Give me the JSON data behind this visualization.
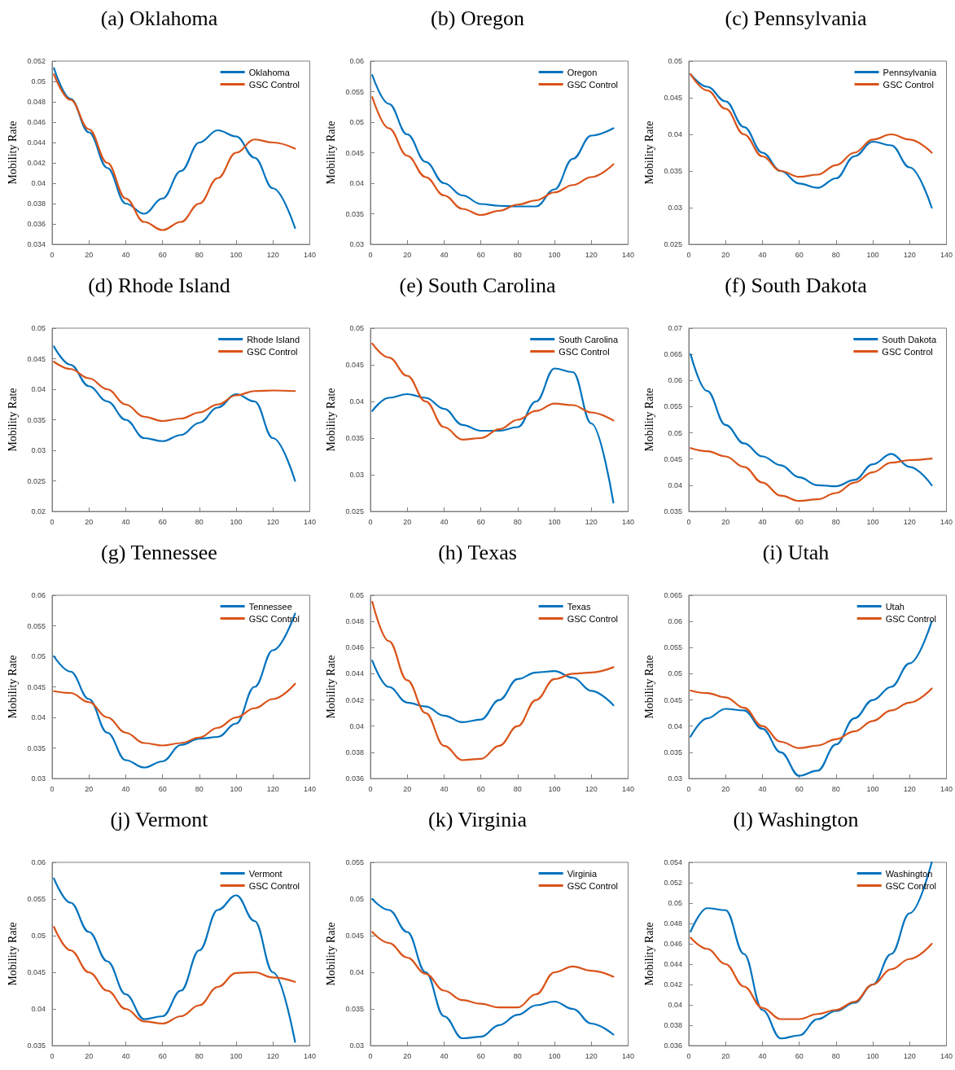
{
  "chart_data": [
    {
      "type": "line",
      "title": "(a) Oklahoma",
      "ylabel": "Mobility Rate",
      "x": [
        1,
        10,
        20,
        30,
        40,
        50,
        60,
        70,
        80,
        90,
        100,
        110,
        120,
        132
      ],
      "xlim": [
        0,
        140
      ],
      "xticks": [
        0,
        20,
        40,
        60,
        80,
        100,
        120,
        140
      ],
      "ylim": [
        0.034,
        0.052
      ],
      "yticks": [
        0.034,
        0.036,
        0.038,
        0.04,
        0.042,
        0.044,
        0.046,
        0.048,
        0.05,
        0.052
      ],
      "legend": "top right",
      "grid": false,
      "line_style": "solid",
      "series": [
        {
          "name": "Oklahoma",
          "color": "#0072bd",
          "values": [
            0.0513,
            0.0483,
            0.045,
            0.0415,
            0.038,
            0.037,
            0.0385,
            0.0412,
            0.044,
            0.0452,
            0.0446,
            0.0425,
            0.0395,
            0.0356
          ]
        },
        {
          "name": "GSC Control",
          "color": "#d95319",
          "values": [
            0.0507,
            0.0482,
            0.0453,
            0.042,
            0.0385,
            0.0362,
            0.0354,
            0.0362,
            0.038,
            0.0405,
            0.043,
            0.0443,
            0.044,
            0.0434
          ]
        }
      ]
    },
    {
      "type": "line",
      "title": "(b) Oregon",
      "ylabel": "Mobility Rate",
      "x": [
        1,
        10,
        20,
        30,
        40,
        50,
        60,
        70,
        80,
        90,
        100,
        110,
        120,
        132
      ],
      "xlim": [
        0,
        140
      ],
      "xticks": [
        0,
        20,
        40,
        60,
        80,
        100,
        120,
        140
      ],
      "ylim": [
        0.03,
        0.06
      ],
      "yticks": [
        0.03,
        0.035,
        0.04,
        0.045,
        0.05,
        0.055,
        0.06
      ],
      "legend": "top right",
      "grid": false,
      "line_style": "solid",
      "series": [
        {
          "name": "Oregon",
          "color": "#0072bd",
          "values": [
            0.0577,
            0.053,
            0.048,
            0.0435,
            0.04,
            0.038,
            0.0366,
            0.0363,
            0.0362,
            0.0362,
            0.039,
            0.044,
            0.0478,
            0.049
          ]
        },
        {
          "name": "GSC Control",
          "color": "#d95319",
          "values": [
            0.0541,
            0.049,
            0.0445,
            0.041,
            0.038,
            0.0358,
            0.0348,
            0.0355,
            0.0365,
            0.0372,
            0.0385,
            0.0397,
            0.041,
            0.0431
          ]
        }
      ]
    },
    {
      "type": "line",
      "title": "(c) Pennsylvania",
      "ylabel": "Mobility Rate",
      "x": [
        1,
        10,
        20,
        30,
        40,
        50,
        60,
        70,
        80,
        90,
        100,
        110,
        120,
        132
      ],
      "xlim": [
        0,
        140
      ],
      "xticks": [
        0,
        20,
        40,
        60,
        80,
        100,
        120,
        140
      ],
      "ylim": [
        0.025,
        0.05
      ],
      "yticks": [
        0.025,
        0.03,
        0.035,
        0.04,
        0.045,
        0.05
      ],
      "legend": "top right",
      "grid": false,
      "line_style": "solid",
      "series": [
        {
          "name": "Pennsylvania",
          "color": "#0072bd",
          "values": [
            0.0482,
            0.0465,
            0.0445,
            0.041,
            0.0375,
            0.035,
            0.0333,
            0.0327,
            0.034,
            0.037,
            0.039,
            0.0385,
            0.0355,
            0.03
          ]
        },
        {
          "name": "GSC Control",
          "color": "#d95319",
          "values": [
            0.0482,
            0.046,
            0.0435,
            0.04,
            0.037,
            0.035,
            0.0342,
            0.0345,
            0.0358,
            0.0375,
            0.0393,
            0.04,
            0.0393,
            0.0375
          ]
        }
      ]
    },
    {
      "type": "line",
      "title": "(d) Rhode Island",
      "ylabel": "Mobility Rate",
      "x": [
        1,
        10,
        20,
        30,
        40,
        50,
        60,
        70,
        80,
        90,
        100,
        110,
        120,
        132
      ],
      "xlim": [
        0,
        140
      ],
      "xticks": [
        0,
        20,
        40,
        60,
        80,
        100,
        120,
        140
      ],
      "ylim": [
        0.02,
        0.05
      ],
      "yticks": [
        0.02,
        0.025,
        0.03,
        0.035,
        0.04,
        0.045,
        0.05
      ],
      "legend": "top right",
      "grid": false,
      "line_style": "solid",
      "series": [
        {
          "name": "Rhode Island",
          "color": "#0072bd",
          "values": [
            0.047,
            0.044,
            0.0405,
            0.038,
            0.035,
            0.032,
            0.0315,
            0.0325,
            0.0345,
            0.037,
            0.0392,
            0.038,
            0.032,
            0.025
          ]
        },
        {
          "name": "GSC Control",
          "color": "#d95319",
          "values": [
            0.0445,
            0.0433,
            0.0418,
            0.04,
            0.0375,
            0.0355,
            0.0348,
            0.0352,
            0.0362,
            0.0375,
            0.039,
            0.0397,
            0.0398,
            0.0397
          ]
        }
      ]
    },
    {
      "type": "line",
      "title": "(e) South Carolina",
      "ylabel": "Mobility Rate",
      "x": [
        1,
        10,
        20,
        30,
        40,
        50,
        60,
        70,
        80,
        90,
        100,
        110,
        120,
        132
      ],
      "xlim": [
        0,
        140
      ],
      "xticks": [
        0,
        20,
        40,
        60,
        80,
        100,
        120,
        140
      ],
      "ylim": [
        0.025,
        0.05
      ],
      "yticks": [
        0.025,
        0.03,
        0.035,
        0.04,
        0.045,
        0.05
      ],
      "legend": "top right",
      "grid": false,
      "line_style": "solid",
      "series": [
        {
          "name": "South Carolina",
          "color": "#0072bd",
          "values": [
            0.0387,
            0.0405,
            0.041,
            0.0405,
            0.039,
            0.0368,
            0.036,
            0.036,
            0.0365,
            0.04,
            0.0445,
            0.044,
            0.037,
            0.0262
          ]
        },
        {
          "name": "GSC Control",
          "color": "#d95319",
          "values": [
            0.0479,
            0.046,
            0.0435,
            0.04,
            0.0365,
            0.0348,
            0.035,
            0.0362,
            0.0375,
            0.0387,
            0.0397,
            0.0395,
            0.0385,
            0.0374
          ]
        }
      ]
    },
    {
      "type": "line",
      "title": "(f) South Dakota",
      "ylabel": "Mobility Rate",
      "x": [
        1,
        10,
        20,
        30,
        40,
        50,
        60,
        70,
        80,
        90,
        100,
        110,
        120,
        132
      ],
      "xlim": [
        0,
        140
      ],
      "xticks": [
        0,
        20,
        40,
        60,
        80,
        100,
        120,
        140
      ],
      "ylim": [
        0.035,
        0.07
      ],
      "yticks": [
        0.035,
        0.04,
        0.045,
        0.05,
        0.055,
        0.06,
        0.065,
        0.07
      ],
      "legend": "top right",
      "grid": false,
      "line_style": "solid",
      "series": [
        {
          "name": "South Dakota",
          "color": "#0072bd",
          "values": [
            0.065,
            0.058,
            0.0515,
            0.048,
            0.0455,
            0.0438,
            0.0415,
            0.04,
            0.0398,
            0.041,
            0.044,
            0.046,
            0.0435,
            0.04
          ]
        },
        {
          "name": "GSC Control",
          "color": "#d95319",
          "values": [
            0.0471,
            0.0465,
            0.0455,
            0.0435,
            0.0405,
            0.038,
            0.037,
            0.0373,
            0.0385,
            0.0405,
            0.0425,
            0.0443,
            0.0448,
            0.0451
          ]
        }
      ]
    },
    {
      "type": "line",
      "title": "(g) Tennessee",
      "ylabel": "Mobility Rate",
      "x": [
        1,
        10,
        20,
        30,
        40,
        50,
        60,
        70,
        80,
        90,
        100,
        110,
        120,
        132
      ],
      "xlim": [
        0,
        140
      ],
      "xticks": [
        0,
        20,
        40,
        60,
        80,
        100,
        120,
        140
      ],
      "ylim": [
        0.03,
        0.06
      ],
      "yticks": [
        0.03,
        0.035,
        0.04,
        0.045,
        0.05,
        0.055,
        0.06
      ],
      "legend": "top right",
      "grid": false,
      "line_style": "solid",
      "series": [
        {
          "name": "Tennessee",
          "color": "#0072bd",
          "values": [
            0.05,
            0.0475,
            0.043,
            0.0375,
            0.033,
            0.0318,
            0.0328,
            0.0355,
            0.0365,
            0.0368,
            0.039,
            0.045,
            0.051,
            0.057
          ]
        },
        {
          "name": "GSC Control",
          "color": "#d95319",
          "values": [
            0.0443,
            0.044,
            0.0425,
            0.04,
            0.0375,
            0.0358,
            0.0354,
            0.0358,
            0.0367,
            0.0383,
            0.04,
            0.0415,
            0.043,
            0.0455
          ]
        }
      ]
    },
    {
      "type": "line",
      "title": "(h) Texas",
      "ylabel": "Mobility Rate",
      "x": [
        1,
        10,
        20,
        30,
        40,
        50,
        60,
        70,
        80,
        90,
        100,
        110,
        120,
        132
      ],
      "xlim": [
        0,
        140
      ],
      "xticks": [
        0,
        20,
        40,
        60,
        80,
        100,
        120,
        140
      ],
      "ylim": [
        0.036,
        0.05
      ],
      "yticks": [
        0.036,
        0.038,
        0.04,
        0.042,
        0.044,
        0.046,
        0.048,
        0.05
      ],
      "legend": "top right",
      "grid": false,
      "line_style": "solid",
      "series": [
        {
          "name": "Texas",
          "color": "#0072bd",
          "values": [
            0.045,
            0.043,
            0.0418,
            0.0415,
            0.0408,
            0.0403,
            0.0405,
            0.042,
            0.0436,
            0.0441,
            0.0442,
            0.0437,
            0.0427,
            0.0416
          ]
        },
        {
          "name": "GSC Control",
          "color": "#d95319",
          "values": [
            0.0495,
            0.0465,
            0.0435,
            0.041,
            0.0385,
            0.0374,
            0.0375,
            0.0385,
            0.04,
            0.042,
            0.0436,
            0.044,
            0.0441,
            0.0445
          ]
        }
      ]
    },
    {
      "type": "line",
      "title": "(i) Utah",
      "ylabel": "Mobility Rate",
      "x": [
        1,
        10,
        20,
        30,
        40,
        50,
        60,
        70,
        80,
        90,
        100,
        110,
        120,
        132
      ],
      "xlim": [
        0,
        140
      ],
      "xticks": [
        0,
        20,
        40,
        60,
        80,
        100,
        120,
        140
      ],
      "ylim": [
        0.03,
        0.065
      ],
      "yticks": [
        0.03,
        0.035,
        0.04,
        0.045,
        0.05,
        0.055,
        0.06,
        0.065
      ],
      "legend": "top right",
      "grid": false,
      "line_style": "solid",
      "series": [
        {
          "name": "Utah",
          "color": "#0072bd",
          "values": [
            0.038,
            0.0415,
            0.0433,
            0.043,
            0.0395,
            0.035,
            0.0305,
            0.0315,
            0.0365,
            0.0415,
            0.045,
            0.0475,
            0.052,
            0.06
          ]
        },
        {
          "name": "GSC Control",
          "color": "#d95319",
          "values": [
            0.0468,
            0.0463,
            0.0455,
            0.0435,
            0.04,
            0.037,
            0.0358,
            0.0363,
            0.0375,
            0.039,
            0.041,
            0.043,
            0.0445,
            0.0472
          ]
        }
      ]
    },
    {
      "type": "line",
      "title": "(j) Vermont",
      "ylabel": "Mobility Rate",
      "x": [
        1,
        10,
        20,
        30,
        40,
        50,
        60,
        70,
        80,
        90,
        100,
        110,
        120,
        132
      ],
      "xlim": [
        0,
        140
      ],
      "xticks": [
        0,
        20,
        40,
        60,
        80,
        100,
        120,
        140
      ],
      "ylim": [
        0.035,
        0.06
      ],
      "yticks": [
        0.035,
        0.04,
        0.045,
        0.05,
        0.055,
        0.06
      ],
      "legend": "top right",
      "grid": false,
      "line_style": "solid",
      "series": [
        {
          "name": "Vermont",
          "color": "#0072bd",
          "values": [
            0.0578,
            0.0545,
            0.0505,
            0.0465,
            0.042,
            0.0386,
            0.039,
            0.0425,
            0.048,
            0.0535,
            0.0555,
            0.052,
            0.045,
            0.0355
          ]
        },
        {
          "name": "GSC Control",
          "color": "#d95319",
          "values": [
            0.0512,
            0.048,
            0.045,
            0.0425,
            0.04,
            0.0383,
            0.038,
            0.039,
            0.0405,
            0.043,
            0.0449,
            0.045,
            0.0443,
            0.0437
          ]
        }
      ]
    },
    {
      "type": "line",
      "title": "(k) Virginia",
      "ylabel": "Mobility Rate",
      "x": [
        1,
        10,
        20,
        30,
        40,
        50,
        60,
        70,
        80,
        90,
        100,
        110,
        120,
        132
      ],
      "xlim": [
        0,
        140
      ],
      "xticks": [
        0,
        20,
        40,
        60,
        80,
        100,
        120,
        140
      ],
      "ylim": [
        0.03,
        0.055
      ],
      "yticks": [
        0.03,
        0.035,
        0.04,
        0.045,
        0.05,
        0.055
      ],
      "legend": "top right",
      "grid": false,
      "line_style": "solid",
      "series": [
        {
          "name": "Virginia",
          "color": "#0072bd",
          "values": [
            0.05,
            0.0485,
            0.0455,
            0.04,
            0.034,
            0.031,
            0.0312,
            0.0328,
            0.0342,
            0.0355,
            0.036,
            0.035,
            0.033,
            0.0315
          ]
        },
        {
          "name": "GSC Control",
          "color": "#d95319",
          "values": [
            0.0455,
            0.044,
            0.042,
            0.0398,
            0.0375,
            0.0362,
            0.0357,
            0.0352,
            0.0352,
            0.037,
            0.04,
            0.0408,
            0.0402,
            0.0394
          ]
        }
      ]
    },
    {
      "type": "line",
      "title": "(l) Washington",
      "ylabel": "Mobility Rate",
      "x": [
        1,
        10,
        20,
        30,
        40,
        50,
        60,
        70,
        80,
        90,
        100,
        110,
        120,
        132
      ],
      "xlim": [
        0,
        140
      ],
      "xticks": [
        0,
        20,
        40,
        60,
        80,
        100,
        120,
        140
      ],
      "ylim": [
        0.036,
        0.054
      ],
      "yticks": [
        0.036,
        0.038,
        0.04,
        0.042,
        0.044,
        0.046,
        0.048,
        0.05,
        0.052,
        0.054
      ],
      "legend": "top right",
      "grid": false,
      "line_style": "solid",
      "series": [
        {
          "name": "Washington",
          "color": "#0072bd",
          "values": [
            0.0472,
            0.0495,
            0.0493,
            0.045,
            0.0395,
            0.0367,
            0.037,
            0.0386,
            0.0394,
            0.0402,
            0.042,
            0.045,
            0.049,
            0.054
          ]
        },
        {
          "name": "GSC Control",
          "color": "#d95319",
          "values": [
            0.0466,
            0.0455,
            0.044,
            0.0418,
            0.0397,
            0.0386,
            0.0386,
            0.0391,
            0.0395,
            0.0403,
            0.042,
            0.0435,
            0.0445,
            0.046
          ]
        }
      ]
    }
  ]
}
